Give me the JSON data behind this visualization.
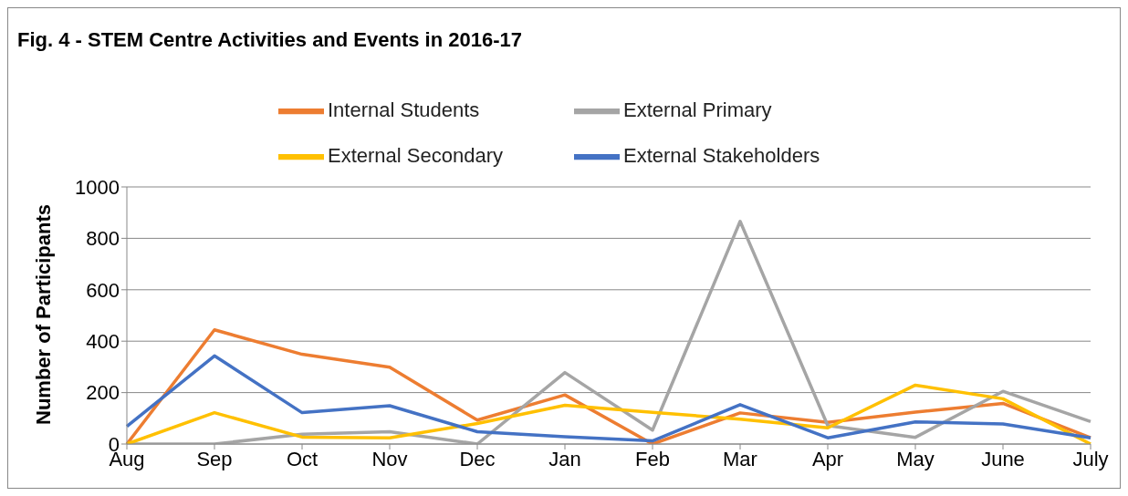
{
  "chart_data": {
    "type": "line",
    "title": "Fig. 4 - STEM Centre Activities and Events in 2016-17",
    "ylabel": "Number of Participants",
    "categories": [
      "Aug",
      "Sep",
      "Oct",
      "Nov",
      "Dec",
      "Jan",
      "Feb",
      "Mar",
      "Apr",
      "May",
      "June",
      "July"
    ],
    "series": [
      {
        "name": "Internal Students",
        "color": "#ed7d31",
        "values": [
          0,
          444,
          349,
          299,
          93,
          191,
          0,
          121,
          84,
          124,
          158,
          24
        ]
      },
      {
        "name": "External Primary",
        "color": "#a5a5a5",
        "values": [
          0,
          0,
          38,
          48,
          0,
          278,
          54,
          866,
          72,
          26,
          205,
          87
        ]
      },
      {
        "name": "External Secondary",
        "color": "#ffc000",
        "values": [
          0,
          122,
          27,
          24,
          80,
          151,
          123,
          97,
          63,
          229,
          176,
          0
        ]
      },
      {
        "name": "External Stakeholders",
        "color": "#4472c4",
        "values": [
          69,
          343,
          122,
          149,
          48,
          28,
          12,
          153,
          24,
          86,
          78,
          24
        ]
      }
    ],
    "ylim": [
      0,
      1000
    ],
    "yticks": [
      0,
      200,
      400,
      600,
      800,
      1000
    ],
    "grid": "y",
    "legend": "top",
    "marker": "none"
  }
}
